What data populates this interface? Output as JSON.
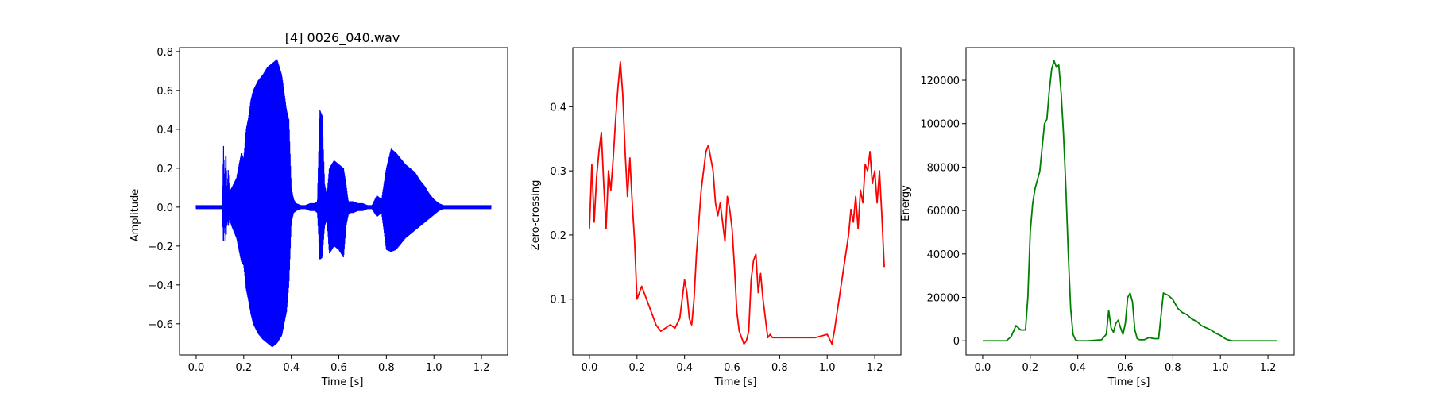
{
  "figure": {
    "background": "#ffffff"
  },
  "chart_data": [
    {
      "type": "line",
      "title": "[4] 0026_040.wav",
      "xlabel": "Time [s]",
      "ylabel": "Amplitude",
      "color": "#0000ff",
      "xlim": [
        -0.07,
        1.31
      ],
      "ylim": [
        -0.76,
        0.82
      ],
      "xticks": [
        0.0,
        0.2,
        0.4,
        0.6,
        0.8,
        1.0,
        1.2
      ],
      "xtick_labels": [
        "0.0",
        "0.2",
        "0.4",
        "0.6",
        "0.8",
        "1.0",
        "1.2"
      ],
      "yticks": [
        -0.6,
        -0.4,
        -0.2,
        0.0,
        0.2,
        0.4,
        0.6,
        0.8
      ],
      "ytick_labels": [
        "−0.6",
        "−0.4",
        "−0.2",
        "0.0",
        "0.2",
        "0.4",
        "0.6",
        "0.8"
      ],
      "envelope": {
        "t": [
          0.0,
          0.11,
          0.115,
          0.12,
          0.125,
          0.13,
          0.135,
          0.14,
          0.15,
          0.17,
          0.19,
          0.2,
          0.21,
          0.22,
          0.23,
          0.24,
          0.26,
          0.28,
          0.3,
          0.32,
          0.34,
          0.36,
          0.38,
          0.39,
          0.4,
          0.41,
          0.42,
          0.44,
          0.46,
          0.48,
          0.5,
          0.51,
          0.52,
          0.53,
          0.54,
          0.55,
          0.56,
          0.58,
          0.6,
          0.62,
          0.63,
          0.64,
          0.65,
          0.66,
          0.68,
          0.7,
          0.72,
          0.74,
          0.76,
          0.78,
          0.8,
          0.82,
          0.84,
          0.86,
          0.88,
          0.9,
          0.92,
          0.94,
          0.96,
          0.98,
          1.0,
          1.02,
          1.04,
          1.06,
          1.1,
          1.24
        ],
        "upper": [
          0.01,
          0.01,
          0.32,
          0.12,
          0.3,
          0.08,
          0.2,
          0.08,
          0.1,
          0.15,
          0.28,
          0.25,
          0.4,
          0.46,
          0.55,
          0.6,
          0.65,
          0.68,
          0.72,
          0.74,
          0.76,
          0.68,
          0.5,
          0.45,
          0.1,
          0.04,
          0.02,
          0.01,
          0.01,
          0.02,
          0.02,
          0.03,
          0.5,
          0.47,
          0.12,
          0.06,
          0.2,
          0.24,
          0.22,
          0.2,
          0.12,
          0.03,
          0.03,
          0.03,
          0.02,
          0.02,
          0.01,
          0.01,
          0.06,
          0.04,
          0.2,
          0.3,
          0.28,
          0.25,
          0.22,
          0.2,
          0.18,
          0.14,
          0.11,
          0.07,
          0.04,
          0.02,
          0.01,
          0.01,
          0.01,
          0.01
        ],
        "lower": [
          -0.01,
          -0.01,
          -0.2,
          -0.08,
          -0.18,
          -0.06,
          -0.1,
          -0.06,
          -0.1,
          -0.16,
          -0.28,
          -0.3,
          -0.42,
          -0.48,
          -0.55,
          -0.6,
          -0.65,
          -0.68,
          -0.7,
          -0.72,
          -0.7,
          -0.66,
          -0.54,
          -0.4,
          -0.08,
          -0.03,
          -0.02,
          -0.01,
          -0.01,
          -0.02,
          -0.02,
          -0.03,
          -0.27,
          -0.26,
          -0.1,
          -0.06,
          -0.24,
          -0.2,
          -0.22,
          -0.26,
          -0.1,
          -0.04,
          -0.03,
          -0.03,
          -0.02,
          -0.02,
          -0.01,
          -0.01,
          -0.05,
          -0.03,
          -0.22,
          -0.23,
          -0.22,
          -0.19,
          -0.16,
          -0.14,
          -0.12,
          -0.1,
          -0.08,
          -0.06,
          -0.04,
          -0.02,
          -0.01,
          -0.01,
          -0.01,
          -0.01
        ]
      }
    },
    {
      "type": "line",
      "xlabel": "Time [s]",
      "ylabel": "Zero-crossing",
      "color": "#ff0000",
      "xlim": [
        -0.07,
        1.31
      ],
      "ylim": [
        0.013,
        0.492
      ],
      "xticks": [
        0.0,
        0.2,
        0.4,
        0.6,
        0.8,
        1.0,
        1.2
      ],
      "xtick_labels": [
        "0.0",
        "0.2",
        "0.4",
        "0.6",
        "0.8",
        "1.0",
        "1.2"
      ],
      "yticks": [
        0.1,
        0.2,
        0.3,
        0.4
      ],
      "ytick_labels": [
        "0.1",
        "0.2",
        "0.3",
        "0.4"
      ],
      "x": [
        0.0,
        0.01,
        0.02,
        0.03,
        0.04,
        0.05,
        0.06,
        0.07,
        0.08,
        0.09,
        0.1,
        0.11,
        0.12,
        0.13,
        0.14,
        0.15,
        0.16,
        0.17,
        0.18,
        0.19,
        0.2,
        0.21,
        0.22,
        0.24,
        0.26,
        0.28,
        0.3,
        0.32,
        0.34,
        0.36,
        0.38,
        0.4,
        0.41,
        0.42,
        0.43,
        0.44,
        0.45,
        0.46,
        0.47,
        0.48,
        0.49,
        0.5,
        0.51,
        0.52,
        0.53,
        0.54,
        0.55,
        0.56,
        0.57,
        0.58,
        0.59,
        0.6,
        0.61,
        0.62,
        0.63,
        0.64,
        0.65,
        0.66,
        0.67,
        0.68,
        0.69,
        0.7,
        0.71,
        0.72,
        0.73,
        0.74,
        0.75,
        0.76,
        0.77,
        0.78,
        0.8,
        0.85,
        0.9,
        0.95,
        1.0,
        1.02,
        1.03,
        1.05,
        1.07,
        1.09,
        1.1,
        1.11,
        1.12,
        1.13,
        1.14,
        1.15,
        1.16,
        1.17,
        1.18,
        1.19,
        1.2,
        1.21,
        1.22,
        1.23,
        1.24
      ],
      "y": [
        0.21,
        0.31,
        0.22,
        0.29,
        0.33,
        0.36,
        0.28,
        0.21,
        0.3,
        0.27,
        0.32,
        0.38,
        0.43,
        0.47,
        0.42,
        0.33,
        0.26,
        0.32,
        0.25,
        0.19,
        0.1,
        0.11,
        0.12,
        0.1,
        0.08,
        0.06,
        0.05,
        0.055,
        0.06,
        0.055,
        0.07,
        0.13,
        0.11,
        0.07,
        0.06,
        0.1,
        0.17,
        0.22,
        0.27,
        0.3,
        0.33,
        0.34,
        0.32,
        0.3,
        0.25,
        0.23,
        0.25,
        0.22,
        0.19,
        0.26,
        0.24,
        0.21,
        0.15,
        0.08,
        0.05,
        0.04,
        0.03,
        0.035,
        0.05,
        0.13,
        0.16,
        0.17,
        0.11,
        0.14,
        0.1,
        0.07,
        0.04,
        0.045,
        0.04,
        0.04,
        0.04,
        0.04,
        0.04,
        0.04,
        0.045,
        0.03,
        0.05,
        0.1,
        0.15,
        0.2,
        0.24,
        0.22,
        0.26,
        0.21,
        0.27,
        0.25,
        0.31,
        0.3,
        0.33,
        0.28,
        0.3,
        0.25,
        0.3,
        0.23,
        0.15
      ]
    },
    {
      "type": "line",
      "xlabel": "Time [s]",
      "ylabel": "Energy",
      "color": "#008000",
      "xlim": [
        -0.07,
        1.31
      ],
      "ylim": [
        -6500,
        135000
      ],
      "xticks": [
        0.0,
        0.2,
        0.4,
        0.6,
        0.8,
        1.0,
        1.2
      ],
      "xtick_labels": [
        "0.0",
        "0.2",
        "0.4",
        "0.6",
        "0.8",
        "1.0",
        "1.2"
      ],
      "yticks": [
        0,
        20000,
        40000,
        60000,
        80000,
        100000,
        120000
      ],
      "ytick_labels": [
        "0",
        "20000",
        "40000",
        "60000",
        "80000",
        "100000",
        "120000"
      ],
      "x": [
        0.0,
        0.1,
        0.12,
        0.14,
        0.15,
        0.16,
        0.18,
        0.19,
        0.2,
        0.21,
        0.22,
        0.24,
        0.26,
        0.27,
        0.28,
        0.29,
        0.3,
        0.31,
        0.32,
        0.33,
        0.34,
        0.35,
        0.36,
        0.37,
        0.38,
        0.39,
        0.4,
        0.41,
        0.42,
        0.44,
        0.5,
        0.52,
        0.53,
        0.54,
        0.55,
        0.56,
        0.57,
        0.58,
        0.59,
        0.6,
        0.61,
        0.62,
        0.63,
        0.64,
        0.65,
        0.66,
        0.68,
        0.7,
        0.72,
        0.74,
        0.76,
        0.78,
        0.79,
        0.8,
        0.82,
        0.84,
        0.86,
        0.88,
        0.9,
        0.92,
        0.94,
        0.96,
        0.98,
        1.0,
        1.02,
        1.03,
        1.05,
        1.24
      ],
      "y": [
        0,
        0,
        2000,
        7000,
        6000,
        5000,
        5000,
        20000,
        50000,
        63000,
        70000,
        78000,
        100000,
        102000,
        115000,
        125000,
        129000,
        126000,
        127000,
        114000,
        95000,
        70000,
        40000,
        15000,
        3000,
        500,
        0,
        0,
        0,
        0,
        500,
        3000,
        14000,
        6000,
        4000,
        8000,
        9500,
        6000,
        3000,
        8000,
        20000,
        22000,
        18000,
        5000,
        1000,
        500,
        500,
        1500,
        1000,
        1000,
        22000,
        21000,
        20000,
        19000,
        15000,
        13000,
        12000,
        10000,
        9000,
        7000,
        6000,
        5000,
        3500,
        2500,
        1000,
        500,
        0,
        0
      ]
    }
  ]
}
